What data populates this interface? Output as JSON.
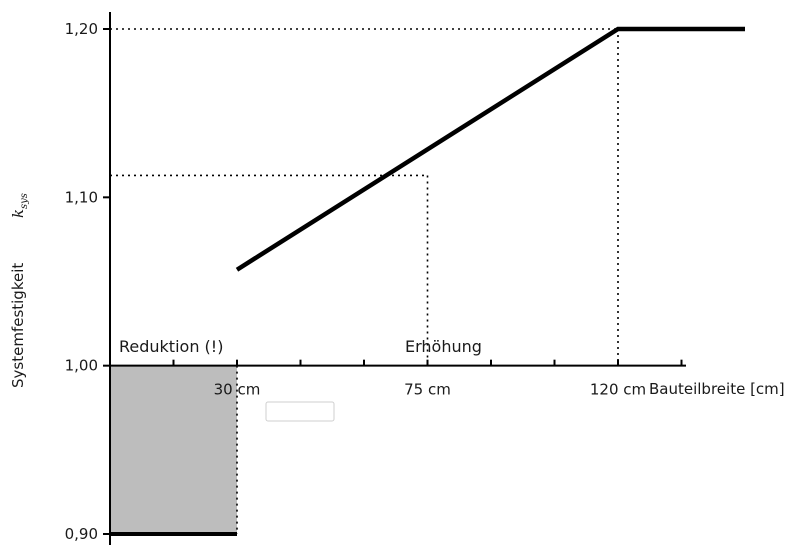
{
  "chart_data": {
    "type": "line",
    "ylabel": "Systemfestigkeit",
    "ylabel_symbol": "k",
    "ylabel_symbol_sub": "sys",
    "xlabel": "Bauteilbreite [cm]",
    "ylim": [
      0.9,
      1.2
    ],
    "yticks": [
      {
        "value": 0.9,
        "label": "0,90"
      },
      {
        "value": 1.0,
        "label": "1,00"
      },
      {
        "value": 1.1,
        "label": "1,10"
      },
      {
        "value": 1.2,
        "label": "1,20"
      }
    ],
    "xticks": [
      {
        "value": 30,
        "label": "30 cm"
      },
      {
        "value": 75,
        "label": "75 cm"
      },
      {
        "value": 120,
        "label": "120 cm"
      }
    ],
    "series": [
      {
        "x": [
          30,
          120,
          150
        ],
        "y": [
          1.057,
          1.2,
          1.2
        ],
        "color": "#000000"
      }
    ],
    "reduction_region": {
      "x": [
        0,
        30
      ],
      "y": [
        0.9,
        1.0
      ],
      "label": "Reduktion (!)",
      "fill": "#bdbdbd"
    },
    "increase_region_label": "Erhöhung",
    "reference_lines": [
      {
        "x": 75,
        "y": 1.113
      },
      {
        "x": 120,
        "y": 1.2
      }
    ],
    "floor_line": {
      "x": [
        0,
        30
      ],
      "y": 0.9
    },
    "grid": false
  }
}
